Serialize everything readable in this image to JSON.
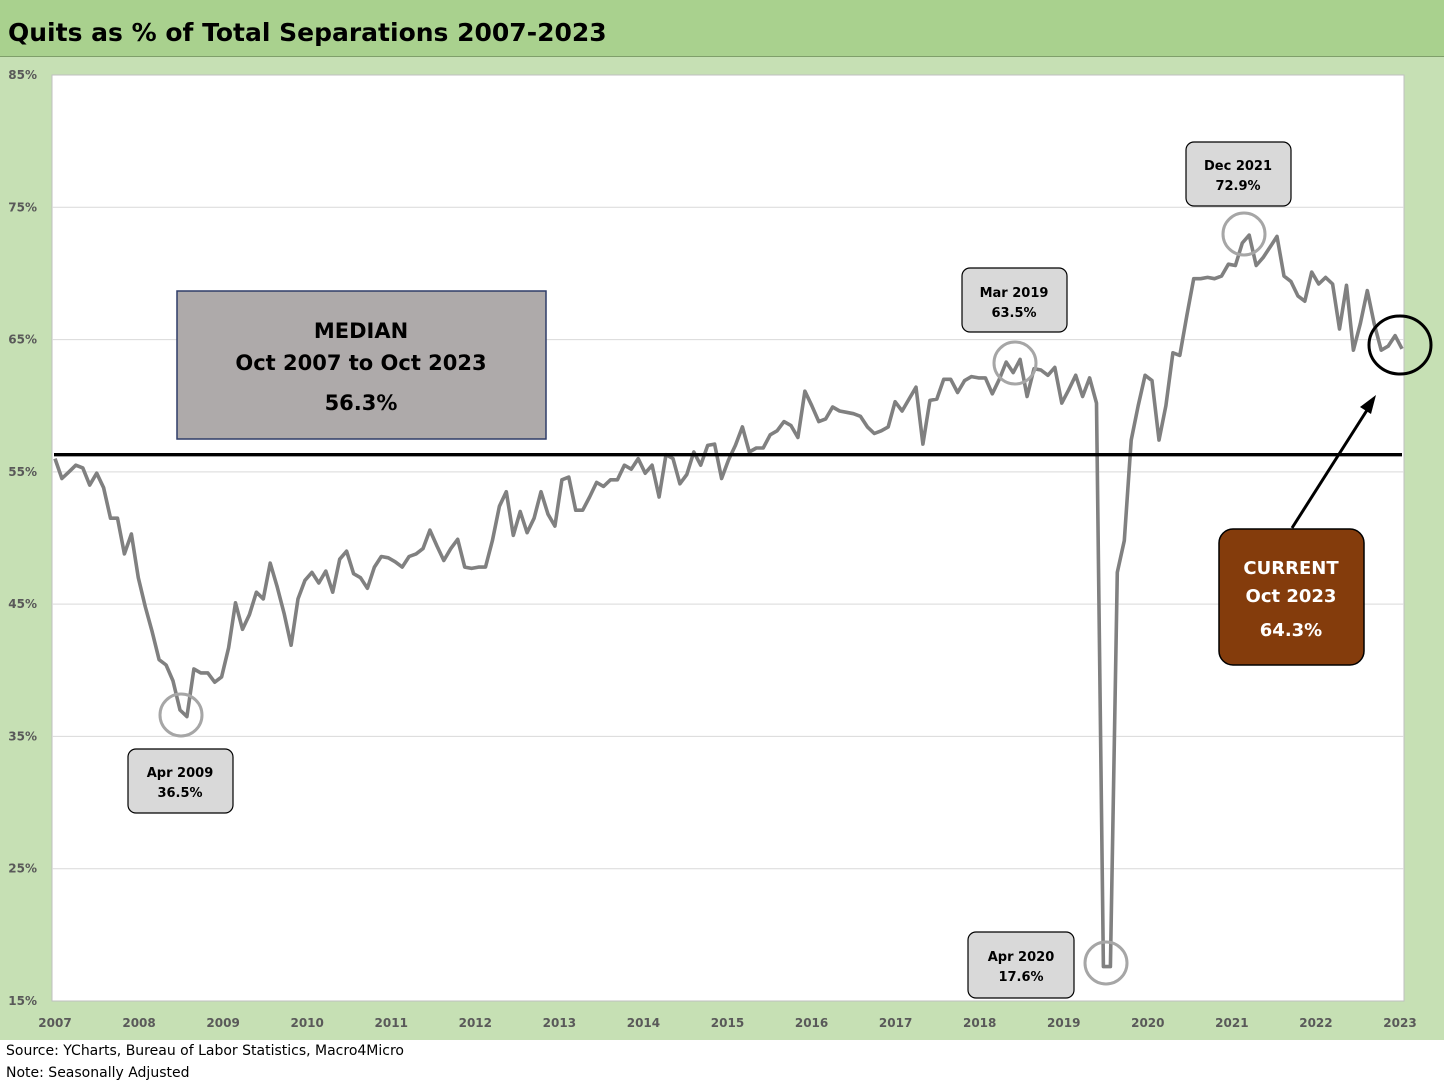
{
  "chart_data": {
    "type": "line",
    "title": "Quits as % of Total Separations 2007-2023",
    "y_ticks": [
      "85%",
      "75%",
      "65%",
      "55%",
      "45%",
      "35%",
      "25%",
      "15%"
    ],
    "ylim": [
      15,
      85
    ],
    "x_ticks": [
      "2007",
      "2008",
      "2009",
      "2010",
      "2011",
      "2012",
      "2013",
      "2014",
      "2015",
      "2016",
      "2017",
      "2018",
      "2019",
      "2020",
      "2021",
      "2022",
      "2023"
    ],
    "grid": "horizontal",
    "series": [
      {
        "color": "#808080",
        "values": [
          56.0,
          54.5,
          55.0,
          55.5,
          55.3,
          54.0,
          54.9,
          53.8,
          51.5,
          51.5,
          48.8,
          50.3,
          47.0,
          44.8,
          42.9,
          40.8,
          40.4,
          39.2,
          37.0,
          36.5,
          40.1,
          39.8,
          39.8,
          39.1,
          39.5,
          41.7,
          45.1,
          43.1,
          44.2,
          45.9,
          45.4,
          48.1,
          46.3,
          44.3,
          41.9,
          45.4,
          46.8,
          47.4,
          46.6,
          47.5,
          45.9,
          48.4,
          49.0,
          47.3,
          47.0,
          46.2,
          47.8,
          48.6,
          48.5,
          48.2,
          47.8,
          48.6,
          48.8,
          49.2,
          50.6,
          49.4,
          48.3,
          49.2,
          49.9,
          47.8,
          47.7,
          47.8,
          47.8,
          49.8,
          52.4,
          53.5,
          50.2,
          52.0,
          50.4,
          51.5,
          53.5,
          51.8,
          50.9,
          54.4,
          54.6,
          52.1,
          52.1,
          53.1,
          54.2,
          53.9,
          54.4,
          54.4,
          55.5,
          55.2,
          56.0,
          54.9,
          55.5,
          53.1,
          56.3,
          56.0,
          54.1,
          54.8,
          56.5,
          55.5,
          57.0,
          57.1,
          54.5,
          55.9,
          57.0,
          58.4,
          56.5,
          56.8,
          56.8,
          57.8,
          58.1,
          58.8,
          58.5,
          57.6,
          61.1,
          60.0,
          58.8,
          59.0,
          59.9,
          59.6,
          59.5,
          59.4,
          59.2,
          58.4,
          57.9,
          58.1,
          58.4,
          60.3,
          59.6,
          60.5,
          61.4,
          57.1,
          60.4,
          60.5,
          62.0,
          62.0,
          61.0,
          61.9,
          62.2,
          62.1,
          62.1,
          60.9,
          62.0,
          63.3,
          62.5,
          63.5,
          60.7,
          62.8,
          62.7,
          62.3,
          62.9,
          60.2,
          61.2,
          62.3,
          60.7,
          62.1,
          60.2,
          17.6,
          17.6,
          47.4,
          49.8,
          57.4,
          60.0,
          62.3,
          61.9,
          57.4,
          60.0,
          64.0,
          63.8,
          66.8,
          69.6,
          69.6,
          69.7,
          69.6,
          69.8,
          70.7,
          70.6,
          72.3,
          72.9,
          70.6,
          71.2,
          72.0,
          72.8,
          69.8,
          69.4,
          68.3,
          67.9,
          70.1,
          69.2,
          69.7,
          69.2,
          65.8,
          69.1,
          64.2,
          66.2,
          68.7,
          66.2,
          64.2,
          64.5,
          65.3,
          64.3
        ]
      }
    ],
    "median_line": 56.3,
    "callouts": [
      {
        "line1": "Apr 2009",
        "line2": "36.5%"
      },
      {
        "line1": "Mar 2019",
        "line2": "63.5%"
      },
      {
        "line1": "Dec 2021",
        "line2": "72.9%"
      },
      {
        "line1": "Apr 2020",
        "line2": "17.6%"
      }
    ],
    "median_box": {
      "line1": "MEDIAN",
      "line2": "Oct 2007 to Oct 2023",
      "line3": "56.3%"
    },
    "current_box": {
      "line1": "CURRENT",
      "line2": "Oct 2023",
      "line3": "64.3%"
    }
  },
  "footer": {
    "source": "Source: YCharts, Bureau of Labor Statistics, Macro4Micro",
    "note": "Note: Seasonally Adjusted"
  },
  "colors": {
    "title_bg": "#a9d18e",
    "chart_bg": "#c6e0b4",
    "median_box": "#aeaaaa",
    "current_box": "#843c0c"
  }
}
